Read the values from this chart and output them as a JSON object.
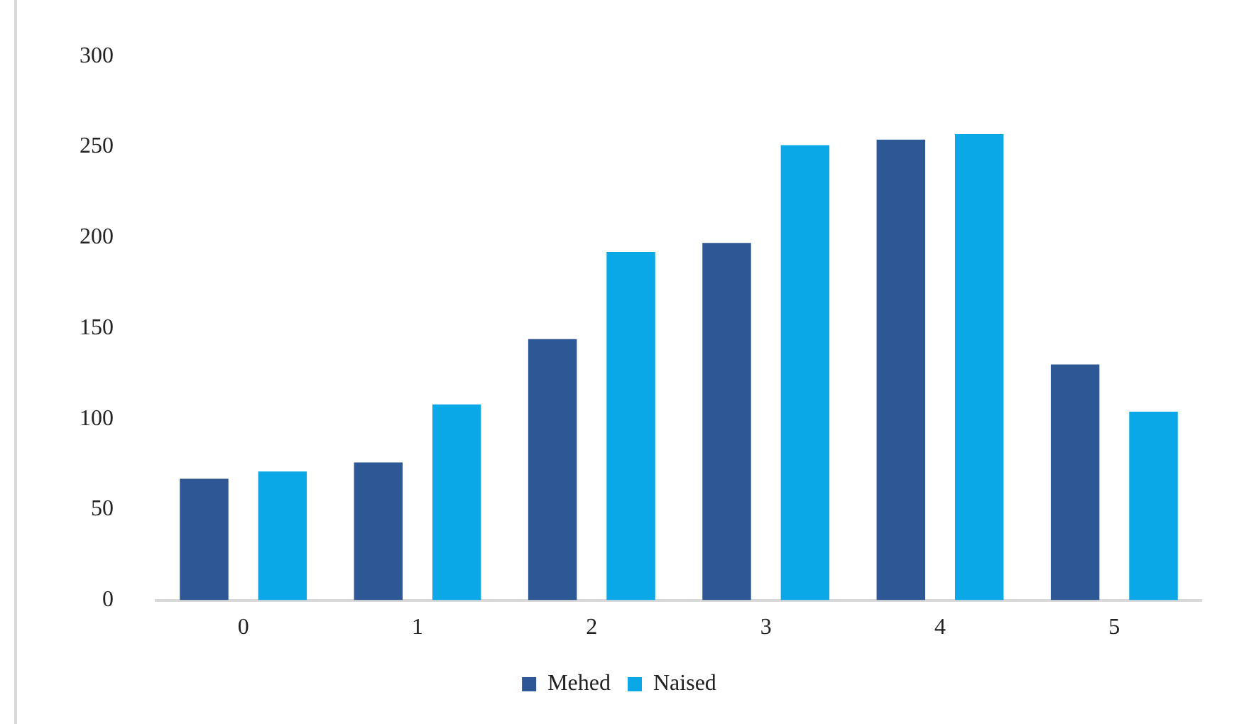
{
  "chart_data": {
    "type": "bar",
    "categories": [
      "0",
      "1",
      "2",
      "3",
      "4",
      "5"
    ],
    "series": [
      {
        "name": "Mehed",
        "color": "#2e5795",
        "values": [
          67,
          76,
          144,
          197,
          254,
          130
        ]
      },
      {
        "name": "Naised",
        "color": "#0aa8e6",
        "values": [
          71,
          108,
          192,
          251,
          257,
          104
        ]
      }
    ],
    "ylim": [
      0,
      300
    ],
    "yticks": [
      0,
      50,
      100,
      150,
      200,
      250,
      300
    ],
    "grid": false,
    "legend": "bottom"
  }
}
